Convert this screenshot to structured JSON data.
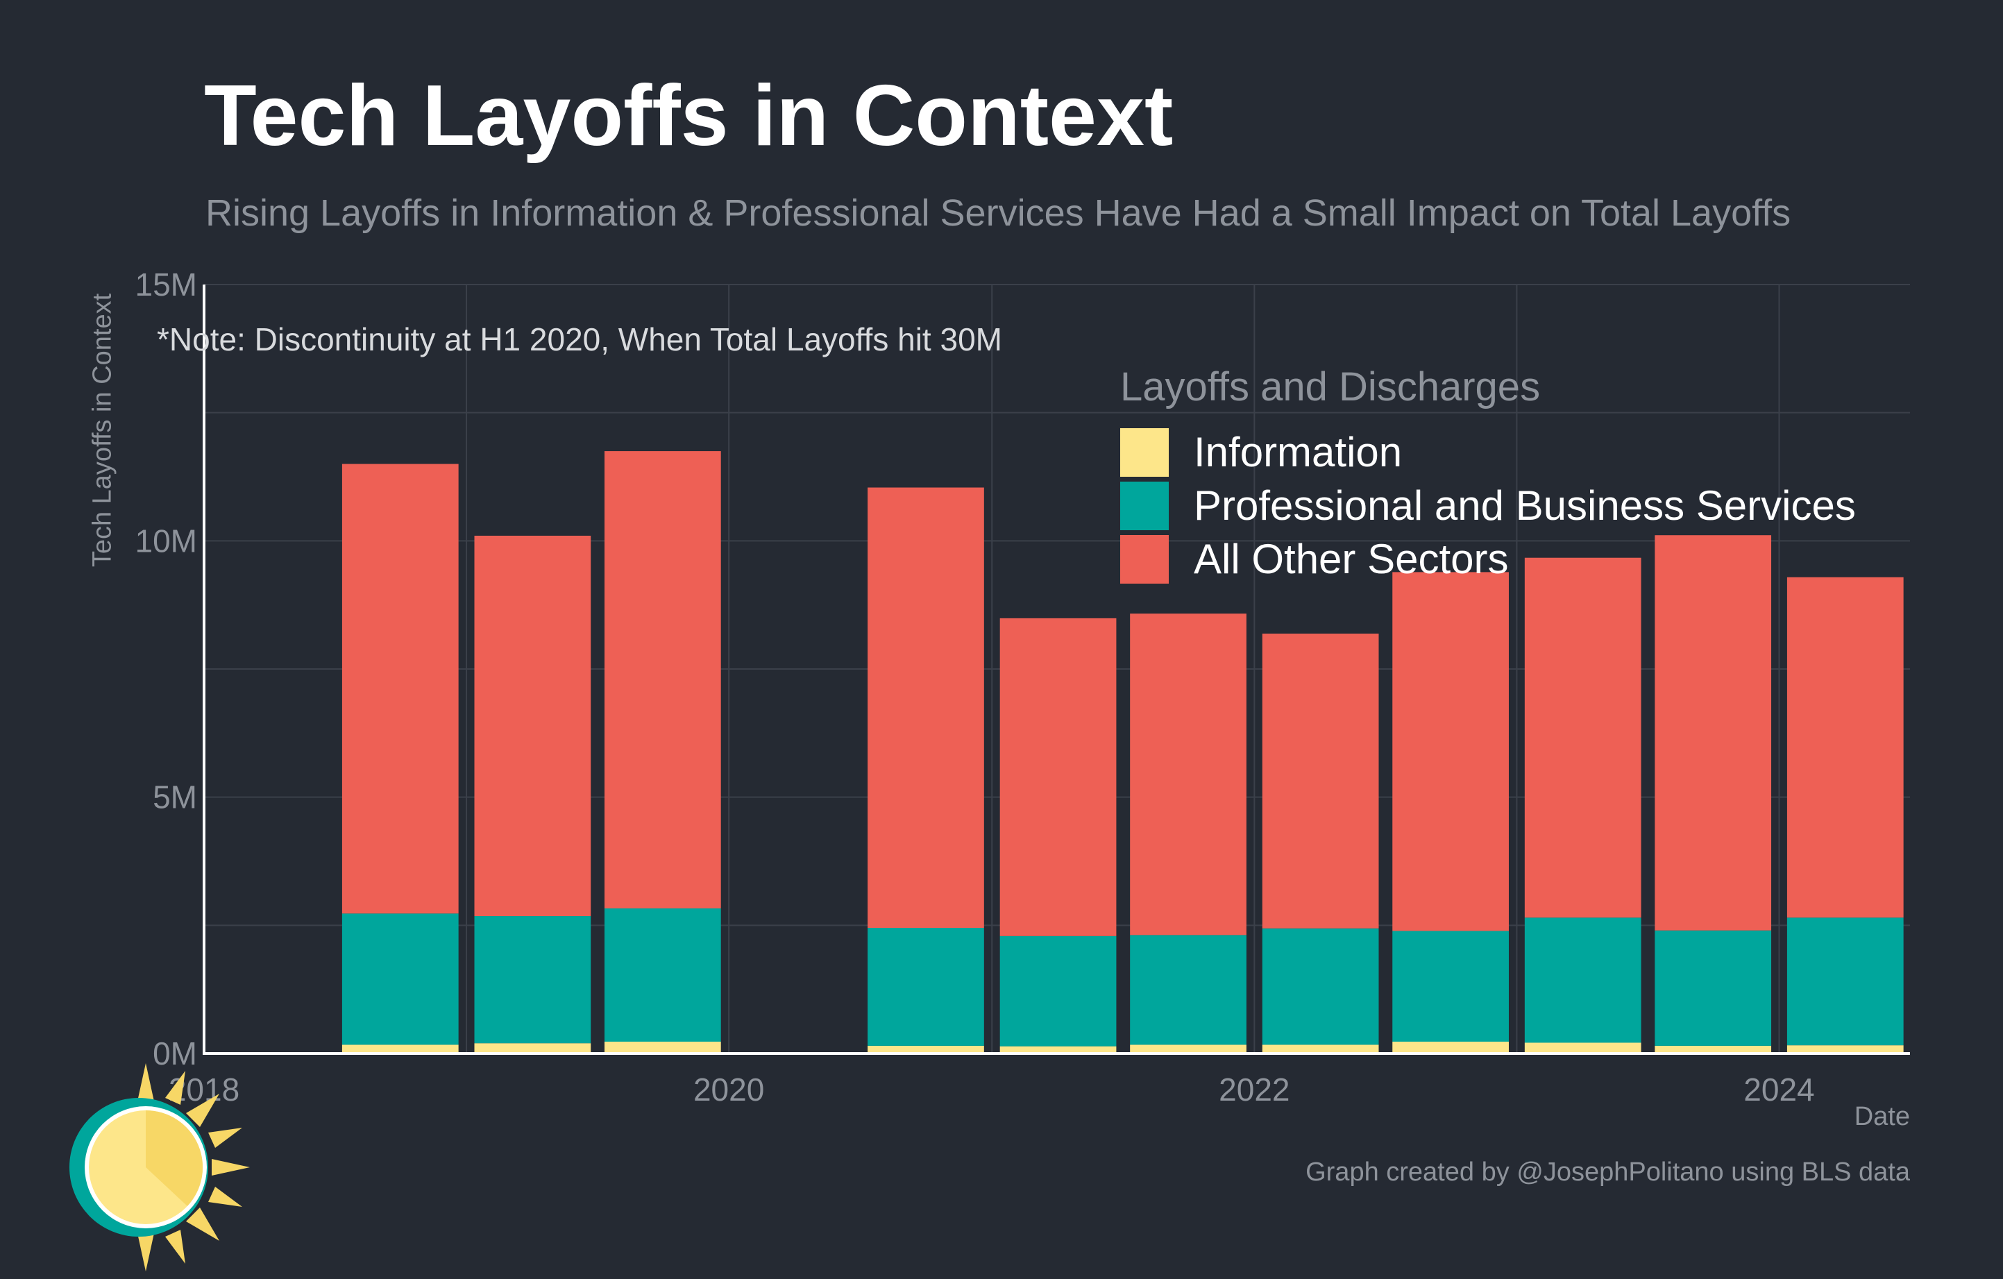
{
  "title": "Tech Layoffs in Context",
  "subtitle": "Rising Layoffs in Information & Professional Services Have Had a Small Impact on Total Layoffs",
  "note": "*Note: Discontinuity at H1 2020, When Total Layoffs hit 30M",
  "credit": "Graph created by @JosephPolitano using BLS data",
  "colors": {
    "background": "#252a33",
    "grid": "#3b404a",
    "axis": "#ffffff",
    "information": "#fde68a",
    "professional": "#00a69c",
    "other": "#ee6055"
  },
  "chart_data": {
    "type": "bar",
    "stacked": true,
    "title": "Tech Layoffs in Context",
    "xlabel": "Date",
    "ylabel": "Tech Layoffs in Context",
    "ylim": [
      0,
      15000000
    ],
    "xlim": [
      "2018-01-01",
      "2024-07-01"
    ],
    "yticks": [
      0,
      5000000,
      10000000,
      15000000
    ],
    "ytick_labels": [
      "0M",
      "5M",
      "10M",
      "15M"
    ],
    "xticks": [
      "2018-01-01",
      "2020-01-01",
      "2022-01-01",
      "2024-01-01"
    ],
    "xtick_labels": [
      "2018",
      "2020",
      "2022",
      "2024"
    ],
    "grid": true,
    "legend_title": "Layoffs and Discharges",
    "legend_position": "top-right",
    "categories": [
      "2018-H2",
      "2019-H1",
      "2019-H2",
      "2020-H2",
      "2021-H1",
      "2021-H2",
      "2022-H1",
      "2022-H2",
      "2023-H1",
      "2023-H2",
      "2024-H1"
    ],
    "x": [
      "2018-07-01",
      "2019-01-01",
      "2019-07-01",
      "2020-07-01",
      "2021-01-01",
      "2021-07-01",
      "2022-01-01",
      "2022-07-01",
      "2023-01-01",
      "2023-07-01",
      "2024-01-01"
    ],
    "series": [
      {
        "name": "Information",
        "color": "#fde68a",
        "values": [
          170000,
          200000,
          230000,
          150000,
          140000,
          170000,
          170000,
          230000,
          210000,
          150000,
          160000
        ]
      },
      {
        "name": "Professional and Business Services",
        "color": "#00a69c",
        "values": [
          2560000,
          2480000,
          2600000,
          2300000,
          2150000,
          2140000,
          2270000,
          2160000,
          2440000,
          2250000,
          2490000
        ]
      },
      {
        "name": "All Other Sectors",
        "color": "#ee6055",
        "values": [
          8770000,
          7420000,
          8920000,
          8590000,
          6200000,
          6270000,
          5750000,
          7000000,
          7020000,
          7710000,
          6640000
        ]
      }
    ]
  }
}
